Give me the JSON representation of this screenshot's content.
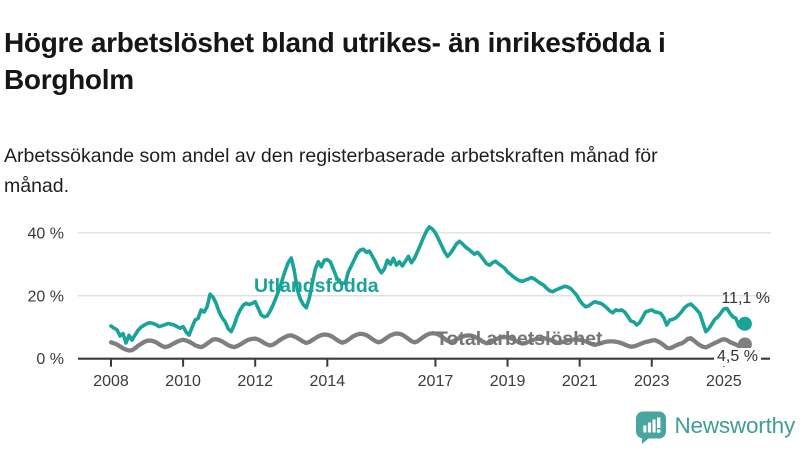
{
  "chart_data": {
    "type": "line",
    "title": "Högre arbetslöshet bland utrikes- än inrikesfödda i Borgholm",
    "subtitle": "Arbetssökande som andel av den registerbaserade arbetskraften månad för månad.",
    "unit": "%",
    "frequency": "monthly",
    "x_start": "2008-01",
    "x_end": "2025-08",
    "ylim": [
      0,
      44
    ],
    "grid": "horizontal",
    "legend_position": "inline-labels",
    "y_ticks": [
      {
        "value": 0,
        "label": "0 %"
      },
      {
        "value": 20,
        "label": "20 %"
      },
      {
        "value": 40,
        "label": "40 %"
      }
    ],
    "x_ticks": [
      {
        "year": 2008,
        "label": "2008"
      },
      {
        "year": 2010,
        "label": "2010"
      },
      {
        "year": 2012,
        "label": "2012"
      },
      {
        "year": 2014,
        "label": "2014"
      },
      {
        "year": 2017,
        "label": "2017"
      },
      {
        "year": 2019,
        "label": "2019"
      },
      {
        "year": 2021,
        "label": "2021"
      },
      {
        "year": 2023,
        "label": "2023"
      },
      {
        "year": 2025,
        "label": "2025"
      }
    ],
    "series": [
      {
        "name": "Utlandsfödda",
        "color": "#1aa398",
        "end_value": 11.1,
        "end_label": "11,1 %",
        "values": [
          10.4,
          9.7,
          9.2,
          7.2,
          8.0,
          5.0,
          7.4,
          5.9,
          7.5,
          9.0,
          10.0,
          10.6,
          11.2,
          11.4,
          11.2,
          10.8,
          10.2,
          10.5,
          10.8,
          11.2,
          11.0,
          10.7,
          10.2,
          9.7,
          10.2,
          8.5,
          7.5,
          10.0,
          12.3,
          12.8,
          15.5,
          14.8,
          16.5,
          20.5,
          19.5,
          17.6,
          14.9,
          13.0,
          11.7,
          9.5,
          8.6,
          10.7,
          13.5,
          15.5,
          17.0,
          17.6,
          17.2,
          17.6,
          18.1,
          16.0,
          13.9,
          13.3,
          13.6,
          15.2,
          17.2,
          19.5,
          22.0,
          25.0,
          28.0,
          30.5,
          32.0,
          28.0,
          22.0,
          19.0,
          17.2,
          16.2,
          19.2,
          24.0,
          28.5,
          30.8,
          29.2,
          31.3,
          31.5,
          30.8,
          28.5,
          26.0,
          24.4,
          24.0,
          23.9,
          27.6,
          29.5,
          31.5,
          33.5,
          34.5,
          34.8,
          33.8,
          34.2,
          32.5,
          30.8,
          28.7,
          27.3,
          28.5,
          31.3,
          30.0,
          31.9,
          29.7,
          30.8,
          29.5,
          31.0,
          32.5,
          30.5,
          31.8,
          34.0,
          36.1,
          38.5,
          40.5,
          41.9,
          41.2,
          40.0,
          38.0,
          36.0,
          34.0,
          32.5,
          33.5,
          35.0,
          36.5,
          37.3,
          36.5,
          35.5,
          34.8,
          34.0,
          33.2,
          33.8,
          32.8,
          31.5,
          30.2,
          29.7,
          30.5,
          31.0,
          30.2,
          29.5,
          28.8,
          27.6,
          26.8,
          26.0,
          25.3,
          24.8,
          24.6,
          25.0,
          25.4,
          25.8,
          25.3,
          24.6,
          23.9,
          23.4,
          22.4,
          21.6,
          21.3,
          21.8,
          22.2,
          22.6,
          23.0,
          22.8,
          22.3,
          21.3,
          20.2,
          18.6,
          17.3,
          16.5,
          16.8,
          17.5,
          18.1,
          17.8,
          17.6,
          17.0,
          16.2,
          15.2,
          14.6,
          15.5,
          15.3,
          15.5,
          14.8,
          13.5,
          12.0,
          11.7,
          10.7,
          11.5,
          13.2,
          14.9,
          15.2,
          15.5,
          14.9,
          14.7,
          14.4,
          13.0,
          10.7,
          12.3,
          12.5,
          13.0,
          13.9,
          15.0,
          16.3,
          17.0,
          17.4,
          16.5,
          15.5,
          14.4,
          11.5,
          8.6,
          9.5,
          11.0,
          12.5,
          13.3,
          14.5,
          15.8,
          16.0,
          14.5,
          13.3,
          12.8,
          10.5,
          9.7,
          11.1
        ]
      },
      {
        "name": "Total arbetslöshet",
        "color": "#7f7f7f",
        "end_value": 4.5,
        "end_label": "4,5 %",
        "values": [
          5.2,
          4.9,
          4.5,
          3.9,
          3.3,
          2.9,
          2.6,
          2.7,
          3.3,
          4.1,
          4.7,
          5.3,
          5.7,
          5.8,
          5.6,
          5.2,
          4.6,
          4.0,
          3.7,
          3.9,
          4.4,
          4.9,
          5.4,
          5.8,
          6.0,
          5.8,
          5.4,
          4.9,
          4.3,
          3.9,
          3.7,
          4.1,
          4.8,
          5.5,
          6.1,
          6.2,
          5.9,
          5.5,
          4.9,
          4.3,
          3.9,
          3.7,
          4.0,
          4.5,
          5.1,
          5.7,
          6.1,
          6.3,
          6.4,
          6.1,
          5.6,
          5.0,
          4.5,
          4.2,
          4.5,
          5.1,
          5.8,
          6.4,
          6.9,
          7.3,
          7.4,
          7.1,
          6.6,
          6.0,
          5.4,
          5.0,
          5.3,
          5.9,
          6.5,
          7.1,
          7.5,
          7.7,
          7.6,
          7.3,
          6.8,
          6.1,
          5.5,
          5.1,
          5.4,
          6.0,
          6.7,
          7.3,
          7.7,
          7.9,
          7.8,
          7.5,
          6.9,
          6.2,
          5.6,
          5.2,
          5.5,
          6.1,
          6.8,
          7.4,
          7.8,
          8.0,
          7.9,
          7.6,
          7.0,
          6.3,
          5.6,
          5.2,
          5.5,
          6.2,
          6.9,
          7.5,
          7.9,
          8.1,
          8.0,
          7.7,
          7.1,
          6.4,
          5.7,
          5.3,
          5.6,
          6.1,
          6.6,
          7.0,
          7.3,
          7.4,
          7.3,
          7.0,
          6.5,
          5.9,
          5.3,
          4.9,
          5.1,
          5.6,
          6.1,
          6.5,
          6.8,
          6.9,
          6.8,
          6.5,
          6.1,
          5.6,
          5.1,
          4.8,
          5.0,
          5.4,
          5.8,
          6.1,
          6.3,
          6.4,
          6.5,
          6.3,
          6.0,
          5.7,
          5.3,
          5.0,
          5.2,
          5.5,
          5.8,
          6.0,
          6.1,
          6.1,
          6.0,
          5.8,
          5.5,
          5.1,
          4.7,
          4.4,
          4.6,
          4.9,
          5.2,
          5.4,
          5.5,
          5.5,
          5.4,
          5.2,
          4.9,
          4.5,
          4.1,
          3.8,
          3.9,
          4.2,
          4.6,
          5.0,
          5.3,
          5.5,
          5.8,
          5.9,
          5.5,
          5.0,
          4.3,
          3.5,
          3.3,
          3.7,
          4.2,
          4.6,
          4.9,
          5.5,
          6.3,
          6.5,
          5.8,
          5.0,
          4.3,
          3.8,
          3.6,
          4.0,
          4.5,
          5.0,
          5.4,
          5.9,
          6.2,
          5.9,
          5.3,
          4.9,
          4.5,
          4.0,
          4.2,
          4.5
        ]
      }
    ],
    "style": {
      "grid_color": "#dcdcdc",
      "axis_color": "#3a3a3a",
      "tick_text_color": "#3b3b3b"
    }
  },
  "logo": {
    "text": "Newsworthy",
    "icon": "bar-chart-speech-bubble-icon",
    "text_color": "#3f9d98",
    "icon_color": "#4aa5a0"
  }
}
